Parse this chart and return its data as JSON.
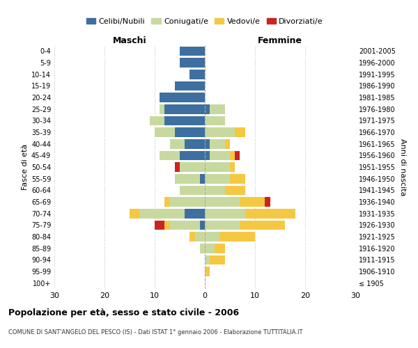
{
  "age_groups": [
    "100+",
    "95-99",
    "90-94",
    "85-89",
    "80-84",
    "75-79",
    "70-74",
    "65-69",
    "60-64",
    "55-59",
    "50-54",
    "45-49",
    "40-44",
    "35-39",
    "30-34",
    "25-29",
    "20-24",
    "15-19",
    "10-14",
    "5-9",
    "0-4"
  ],
  "birth_years": [
    "≤ 1905",
    "1906-1910",
    "1911-1915",
    "1916-1920",
    "1921-1925",
    "1926-1930",
    "1931-1935",
    "1936-1940",
    "1941-1945",
    "1946-1950",
    "1951-1955",
    "1956-1960",
    "1961-1965",
    "1966-1970",
    "1971-1975",
    "1976-1980",
    "1981-1985",
    "1986-1990",
    "1991-1995",
    "1996-2000",
    "2001-2005"
  ],
  "maschi": {
    "celibi": [
      0,
      0,
      0,
      0,
      0,
      1,
      4,
      0,
      0,
      1,
      0,
      5,
      4,
      6,
      8,
      8,
      9,
      6,
      3,
      5,
      5
    ],
    "coniugati": [
      0,
      0,
      0,
      1,
      2,
      6,
      9,
      7,
      5,
      5,
      5,
      4,
      3,
      4,
      3,
      1,
      0,
      0,
      0,
      0,
      0
    ],
    "vedovi": [
      0,
      0,
      0,
      0,
      1,
      1,
      2,
      1,
      0,
      0,
      0,
      0,
      0,
      0,
      0,
      0,
      0,
      0,
      0,
      0,
      0
    ],
    "divorziati": [
      0,
      0,
      0,
      0,
      0,
      2,
      0,
      0,
      0,
      0,
      1,
      0,
      0,
      0,
      0,
      0,
      0,
      0,
      0,
      0,
      0
    ]
  },
  "femmine": {
    "nubili": [
      0,
      0,
      0,
      0,
      0,
      0,
      0,
      0,
      0,
      0,
      0,
      1,
      1,
      0,
      0,
      1,
      0,
      0,
      0,
      0,
      0
    ],
    "coniugate": [
      0,
      0,
      1,
      2,
      3,
      7,
      8,
      7,
      4,
      5,
      5,
      4,
      3,
      6,
      4,
      3,
      0,
      0,
      0,
      0,
      0
    ],
    "vedove": [
      0,
      1,
      3,
      2,
      7,
      9,
      10,
      5,
      4,
      3,
      1,
      1,
      1,
      2,
      0,
      0,
      0,
      0,
      0,
      0,
      0
    ],
    "divorziate": [
      0,
      0,
      0,
      0,
      0,
      0,
      0,
      1,
      0,
      0,
      0,
      1,
      0,
      0,
      0,
      0,
      0,
      0,
      0,
      0,
      0
    ]
  },
  "colors": {
    "celibi": "#3d6fa0",
    "coniugati": "#c8d9a0",
    "vedovi": "#f5c842",
    "divorziati": "#cc2222"
  },
  "xlim": 30,
  "title": "Popolazione per età, sesso e stato civile - 2006",
  "subtitle": "COMUNE DI SANT'ANGELO DEL PESCO (IS) - Dati ISTAT 1° gennaio 2006 - Elaborazione TUTTITALIA.IT",
  "ylabel": "Fasce di età",
  "ylabel_right": "Anni di nascita",
  "label_maschi": "Maschi",
  "label_femmine": "Femmine",
  "legend_labels": [
    "Celibi/Nubili",
    "Coniugati/e",
    "Vedovi/e",
    "Divorziati/e"
  ]
}
